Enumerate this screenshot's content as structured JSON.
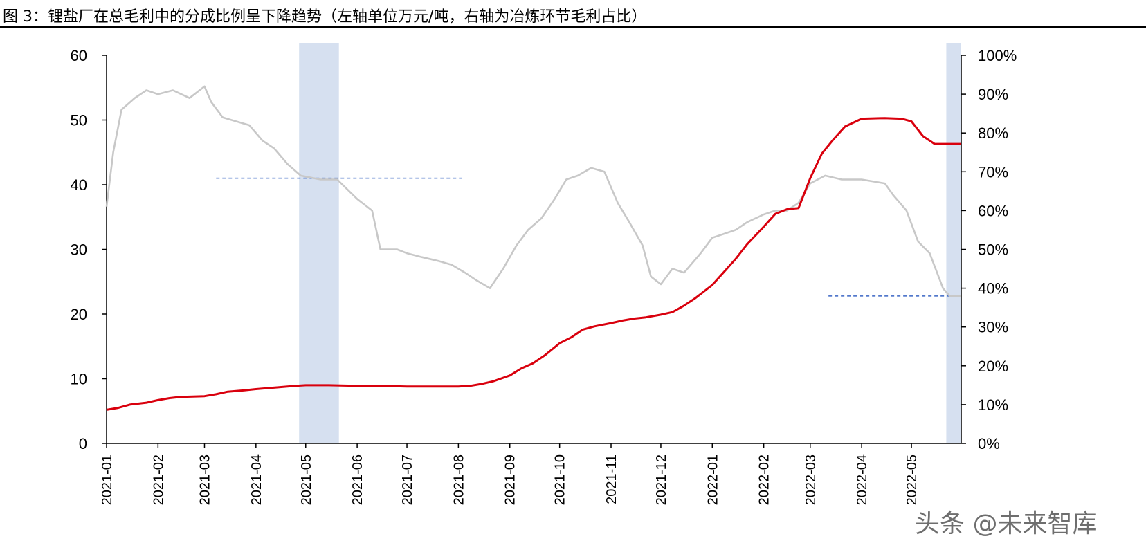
{
  "title": "图 3：锂盐厂在总毛利中的分成比例呈下降趋势（左轴单位万元/吨，右轴为冶炼环节毛利占比）",
  "watermark": "头条 @未来智库",
  "colors": {
    "red": "#d9000d",
    "gray": "#c8c8c8",
    "band": "#d6e0f0",
    "dash": "#3a66c4",
    "axis": "#000000"
  },
  "chart_data": {
    "type": "line",
    "title": "图 3：锂盐厂在总毛利中的分成比例呈下降趋势（左轴单位万元/吨，右轴为冶炼环节毛利占比）",
    "x_type": "date",
    "x_range": [
      "2021-01-01",
      "2022-05-31"
    ],
    "x_ticks": [
      "2021-01",
      "2021-02",
      "2021-03",
      "2021-04",
      "2021-05",
      "2021-06",
      "2021-07",
      "2021-08",
      "2021-09",
      "2021-10",
      "2021-11",
      "2021-12",
      "2022-01",
      "2022-02",
      "2022-03",
      "2022-04",
      "2022-05"
    ],
    "y_left": {
      "label": "万元/吨",
      "range": [
        0,
        60
      ],
      "ticks": [
        "0",
        "10",
        "20",
        "30",
        "40",
        "50",
        "60"
      ]
    },
    "y_right": {
      "label": "冶炼环节毛利占比",
      "range": [
        0,
        100
      ],
      "ticks": [
        "0%",
        "10%",
        "20%",
        "30%",
        "40%",
        "50%",
        "60%",
        "70%",
        "80%",
        "90%",
        "100%"
      ]
    },
    "series": [
      {
        "axis": "left",
        "color": "#d9000d",
        "points": [
          [
            "2021-01-01",
            5.2
          ],
          [
            "2021-01-08",
            5.5
          ],
          [
            "2021-01-15",
            6.0
          ],
          [
            "2021-01-25",
            6.3
          ],
          [
            "2021-02-01",
            6.7
          ],
          [
            "2021-02-08",
            7.0
          ],
          [
            "2021-02-15",
            7.2
          ],
          [
            "2021-03-01",
            7.3
          ],
          [
            "2021-03-08",
            7.6
          ],
          [
            "2021-03-15",
            8.0
          ],
          [
            "2021-03-25",
            8.2
          ],
          [
            "2021-04-01",
            8.4
          ],
          [
            "2021-04-15",
            8.7
          ],
          [
            "2021-04-25",
            8.9
          ],
          [
            "2021-05-01",
            9.0
          ],
          [
            "2021-05-15",
            9.0
          ],
          [
            "2021-06-01",
            8.9
          ],
          [
            "2021-06-15",
            8.9
          ],
          [
            "2021-07-01",
            8.8
          ],
          [
            "2021-07-15",
            8.8
          ],
          [
            "2021-08-01",
            8.8
          ],
          [
            "2021-08-08",
            8.9
          ],
          [
            "2021-08-15",
            9.2
          ],
          [
            "2021-08-22",
            9.6
          ],
          [
            "2021-09-01",
            10.5
          ],
          [
            "2021-09-08",
            11.6
          ],
          [
            "2021-09-15",
            12.4
          ],
          [
            "2021-09-22",
            13.6
          ],
          [
            "2021-10-01",
            15.5
          ],
          [
            "2021-10-08",
            16.4
          ],
          [
            "2021-10-15",
            17.6
          ],
          [
            "2021-10-22",
            18.1
          ],
          [
            "2021-11-01",
            18.6
          ],
          [
            "2021-11-08",
            19.0
          ],
          [
            "2021-11-15",
            19.3
          ],
          [
            "2021-11-22",
            19.5
          ],
          [
            "2021-12-01",
            19.9
          ],
          [
            "2021-12-08",
            20.3
          ],
          [
            "2021-12-15",
            21.3
          ],
          [
            "2021-12-22",
            22.5
          ],
          [
            "2022-01-01",
            24.5
          ],
          [
            "2022-01-08",
            26.5
          ],
          [
            "2022-01-15",
            28.5
          ],
          [
            "2022-01-22",
            30.8
          ],
          [
            "2022-02-01",
            33.5
          ],
          [
            "2022-02-08",
            35.5
          ],
          [
            "2022-02-15",
            36.2
          ],
          [
            "2022-02-22",
            36.4
          ],
          [
            "2022-03-01",
            41.0
          ],
          [
            "2022-03-08",
            44.8
          ],
          [
            "2022-03-15",
            47.0
          ],
          [
            "2022-03-22",
            49.0
          ],
          [
            "2022-04-01",
            50.2
          ],
          [
            "2022-04-15",
            50.3
          ],
          [
            "2022-04-25",
            50.2
          ],
          [
            "2022-05-01",
            49.8
          ],
          [
            "2022-05-08",
            47.5
          ],
          [
            "2022-05-15",
            46.3
          ],
          [
            "2022-05-31",
            46.3
          ]
        ]
      },
      {
        "axis": "right",
        "color": "#c8c8c8",
        "points": [
          [
            "2021-01-01",
            61
          ],
          [
            "2021-01-05",
            75
          ],
          [
            "2021-01-10",
            86
          ],
          [
            "2021-01-18",
            89
          ],
          [
            "2021-01-25",
            91
          ],
          [
            "2021-02-01",
            90
          ],
          [
            "2021-02-10",
            91
          ],
          [
            "2021-02-20",
            89
          ],
          [
            "2021-03-01",
            92
          ],
          [
            "2021-03-05",
            88
          ],
          [
            "2021-03-12",
            84
          ],
          [
            "2021-03-20",
            83
          ],
          [
            "2021-03-28",
            82
          ],
          [
            "2021-04-05",
            78
          ],
          [
            "2021-04-12",
            76
          ],
          [
            "2021-04-20",
            72
          ],
          [
            "2021-04-28",
            69
          ],
          [
            "2021-05-10",
            68
          ],
          [
            "2021-05-20",
            68
          ],
          [
            "2021-06-01",
            63
          ],
          [
            "2021-06-10",
            60
          ],
          [
            "2021-06-15",
            50
          ],
          [
            "2021-06-25",
            50
          ],
          [
            "2021-07-01",
            49
          ],
          [
            "2021-07-10",
            48
          ],
          [
            "2021-07-20",
            47
          ],
          [
            "2021-07-28",
            46
          ],
          [
            "2021-08-05",
            44
          ],
          [
            "2021-08-12",
            42
          ],
          [
            "2021-08-20",
            40
          ],
          [
            "2021-08-28",
            45
          ],
          [
            "2021-09-05",
            51
          ],
          [
            "2021-09-12",
            55
          ],
          [
            "2021-09-20",
            58
          ],
          [
            "2021-09-28",
            63
          ],
          [
            "2021-10-05",
            68
          ],
          [
            "2021-10-12",
            69
          ],
          [
            "2021-10-20",
            71
          ],
          [
            "2021-10-28",
            70
          ],
          [
            "2021-11-05",
            62
          ],
          [
            "2021-11-12",
            57
          ],
          [
            "2021-11-20",
            51
          ],
          [
            "2021-11-25",
            43
          ],
          [
            "2021-12-01",
            41
          ],
          [
            "2021-12-08",
            45
          ],
          [
            "2021-12-15",
            44
          ],
          [
            "2021-12-25",
            49
          ],
          [
            "2022-01-01",
            53
          ],
          [
            "2022-01-08",
            54
          ],
          [
            "2022-01-15",
            55
          ],
          [
            "2022-01-22",
            57
          ],
          [
            "2022-02-01",
            59
          ],
          [
            "2022-02-08",
            60
          ],
          [
            "2022-02-15",
            60
          ],
          [
            "2022-02-22",
            62
          ],
          [
            "2022-03-01",
            67
          ],
          [
            "2022-03-10",
            69
          ],
          [
            "2022-03-20",
            68
          ],
          [
            "2022-04-01",
            68
          ],
          [
            "2022-04-15",
            67
          ],
          [
            "2022-04-20",
            64
          ],
          [
            "2022-04-28",
            60
          ],
          [
            "2022-05-05",
            52
          ],
          [
            "2022-05-12",
            49
          ],
          [
            "2022-05-20",
            40
          ],
          [
            "2022-05-24",
            38
          ],
          [
            "2022-05-31",
            38
          ]
        ]
      }
    ],
    "shaded_ranges": [
      [
        "2021-04-27",
        "2021-05-21"
      ],
      [
        "2022-05-22",
        "2022-05-31"
      ]
    ],
    "reference_lines": [
      {
        "axis": "left",
        "value": 41,
        "from": "2021-03-08",
        "to": "2021-08-03"
      },
      {
        "axis": "right",
        "value": 38,
        "from": "2022-03-12",
        "to": "2022-05-31"
      }
    ]
  }
}
